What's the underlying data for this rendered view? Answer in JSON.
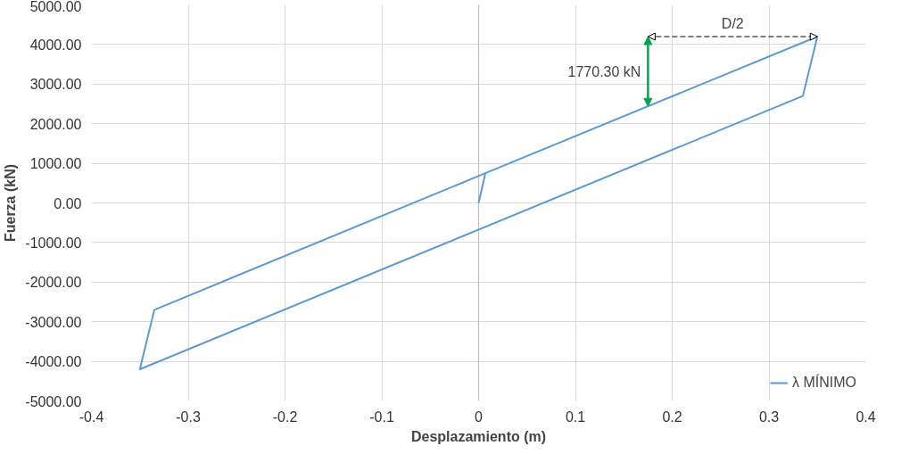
{
  "chart_data": {
    "type": "line",
    "xlabel": "Desplazamiento (m)",
    "ylabel": "Fuerza (kN)",
    "series": [
      {
        "name": "λ MÍNIMO",
        "color": "#5b9bd5",
        "x": [
          0,
          0.007,
          0.35,
          0.335,
          -0.35,
          -0.335,
          0.007
        ],
        "values": [
          0,
          750,
          4200,
          2700,
          -4200,
          -2700,
          750
        ]
      }
    ],
    "xlim": [
      -0.4,
      0.4
    ],
    "xticks": [
      -0.4,
      -0.3,
      -0.2,
      -0.1,
      0,
      0.1,
      0.2,
      0.3,
      0.4
    ],
    "ylim": [
      -5000,
      5000
    ],
    "yticks": [
      {
        "value": -5000,
        "label": "-5000.00"
      },
      {
        "value": -4000,
        "label": "-4000.00"
      },
      {
        "value": -3000,
        "label": "-3000.00"
      },
      {
        "value": -2000,
        "label": "-2000.00"
      },
      {
        "value": -1000,
        "label": "-1000.00"
      },
      {
        "value": 0,
        "label": "0.00"
      },
      {
        "value": 1000,
        "label": "1000.00"
      },
      {
        "value": 2000,
        "label": "2000.00"
      },
      {
        "value": 3000,
        "label": "3000.00"
      },
      {
        "value": 4000,
        "label": "4000.00"
      },
      {
        "value": 5000,
        "label": "5000.00"
      }
    ],
    "annotations": [
      "1770.30 kN",
      "D/2"
    ],
    "grid": true,
    "legend": "bottom right",
    "marker": "none",
    "line_style": "solid"
  }
}
